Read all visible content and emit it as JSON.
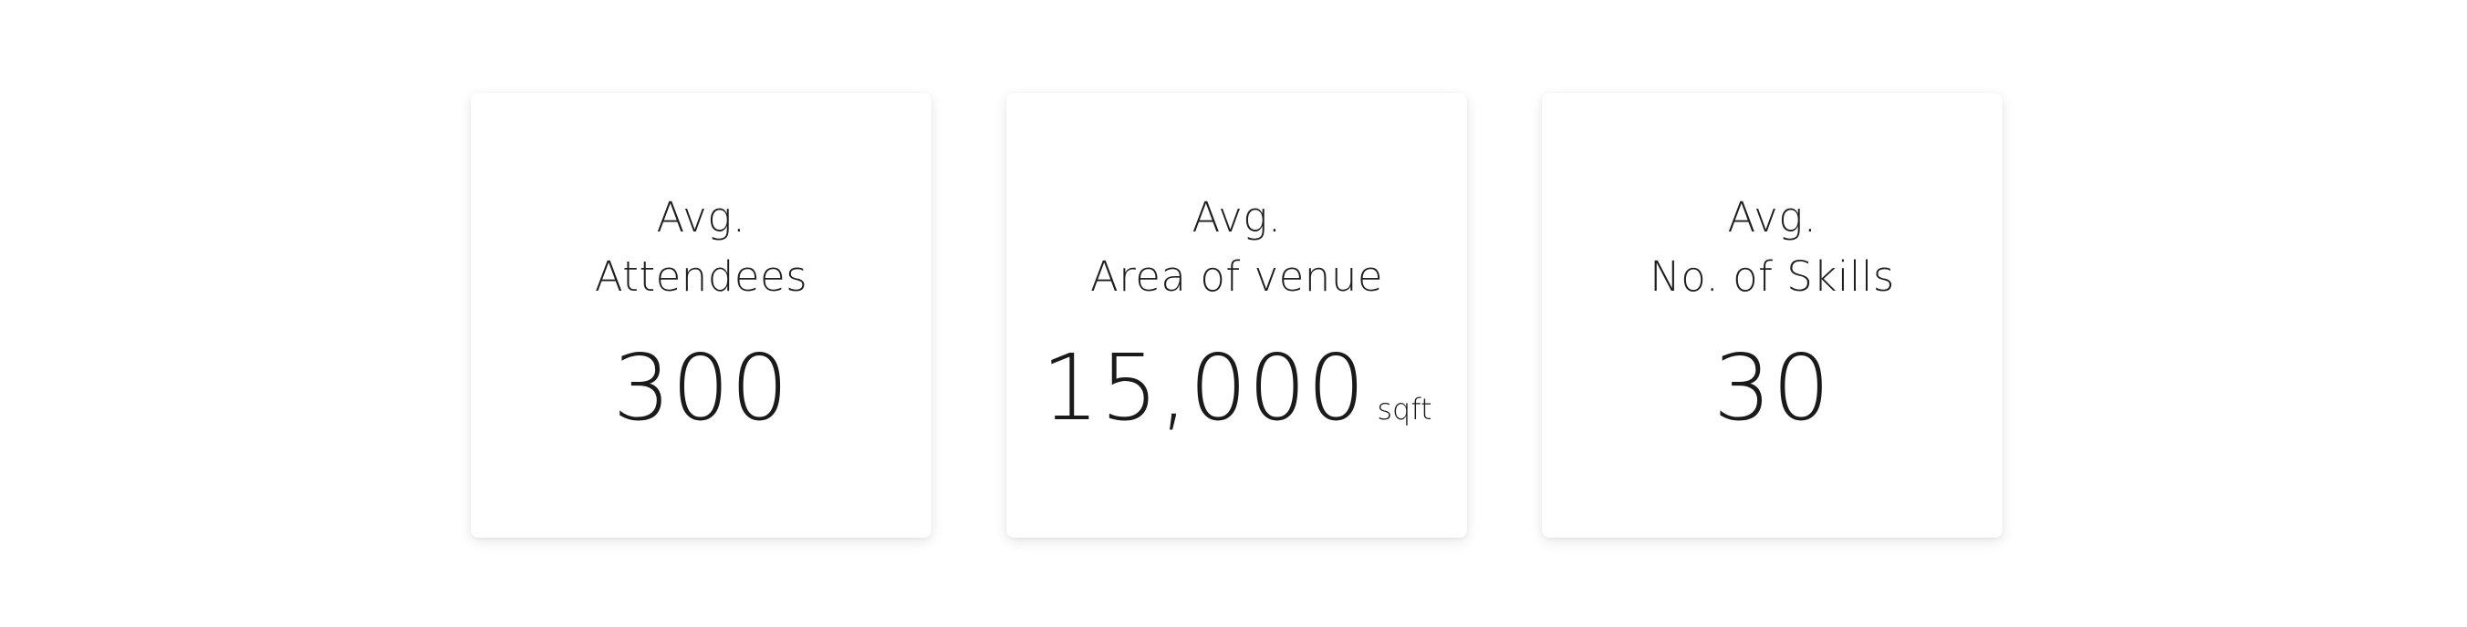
{
  "stats": [
    {
      "label_line1": "Avg.",
      "label_line2": "Attendees",
      "value": "300",
      "unit": ""
    },
    {
      "label_line1": "Avg.",
      "label_line2": "Area of venue",
      "value": "15,000",
      "unit": "sqft"
    },
    {
      "label_line1": "Avg.",
      "label_line2": "No. of Skills",
      "value": "30",
      "unit": ""
    }
  ]
}
